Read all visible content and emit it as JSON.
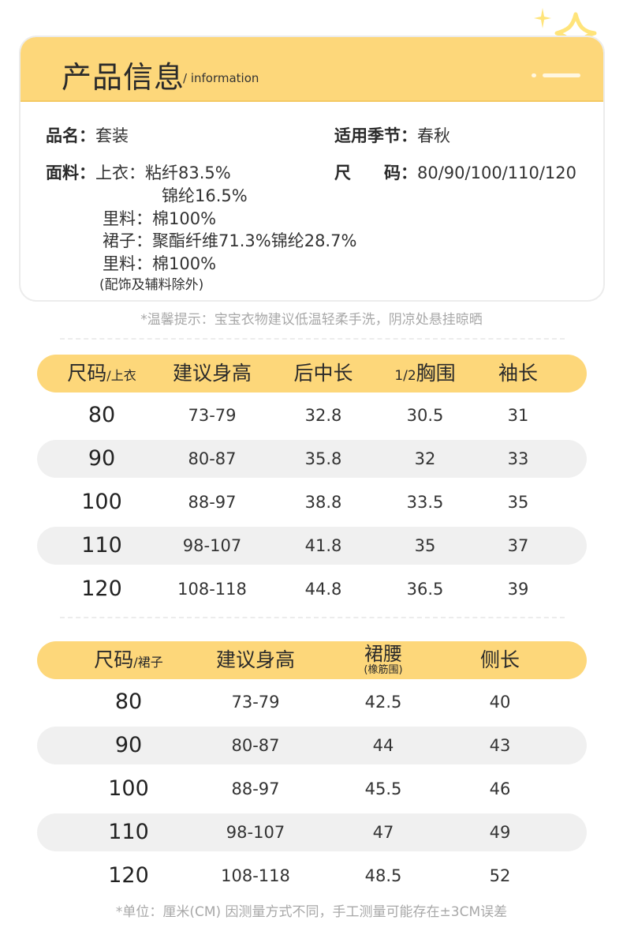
{
  "header": {
    "title": "产品信息",
    "subtitle": "/ information"
  },
  "info": {
    "name_key": "品名：",
    "name_val": "套装",
    "season_key": "适用季节：",
    "season_val": "春秋",
    "fabric_key": "面料：",
    "fabric_top": "上衣：粘纤83.5%",
    "fabric_top2": "锦纶16.5%",
    "lining1": "里料：棉100%",
    "skirt": "裙子：聚酯纤维71.3%锦纶28.7%",
    "lining2": "里料：棉100%",
    "note": "(配饰及辅料除外)",
    "size_key": "尺　　码：",
    "size_val": "80/90/100/110/120"
  },
  "wash_tip": "*温馨提示：宝宝衣物建议低温轻柔手洗，阴凉处悬挂晾晒",
  "top_table": {
    "headers": {
      "size": "尺码",
      "size_sub": "/上衣",
      "height": "建议身高",
      "back": "后中长",
      "chest_pre": "1/2",
      "chest": "胸围",
      "sleeve": "袖长"
    },
    "rows": [
      [
        "80",
        "73-79",
        "32.8",
        "30.5",
        "31"
      ],
      [
        "90",
        "80-87",
        "35.8",
        "32",
        "33"
      ],
      [
        "100",
        "88-97",
        "38.8",
        "33.5",
        "35"
      ],
      [
        "110",
        "98-107",
        "41.8",
        "35",
        "37"
      ],
      [
        "120",
        "108-118",
        "44.8",
        "36.5",
        "39"
      ]
    ]
  },
  "skirt_table": {
    "headers": {
      "size": "尺码",
      "size_sub": "/裙子",
      "height": "建议身高",
      "waist": "裙腰",
      "waist_sub": "(橡筋围)",
      "side": "侧长"
    },
    "rows": [
      [
        "80",
        "73-79",
        "42.5",
        "40"
      ],
      [
        "90",
        "80-87",
        "44",
        "43"
      ],
      [
        "100",
        "88-97",
        "45.5",
        "46"
      ],
      [
        "110",
        "98-107",
        "47",
        "49"
      ],
      [
        "120",
        "108-118",
        "48.5",
        "52"
      ]
    ]
  },
  "unit_note": "*单位：厘米(CM) 因测量方式不同，手工测量可能存在±3CM误差",
  "colors": {
    "accent": "#fdd77a",
    "row_shade": "#f0f0f0",
    "tip_text": "#a8a8a8"
  }
}
